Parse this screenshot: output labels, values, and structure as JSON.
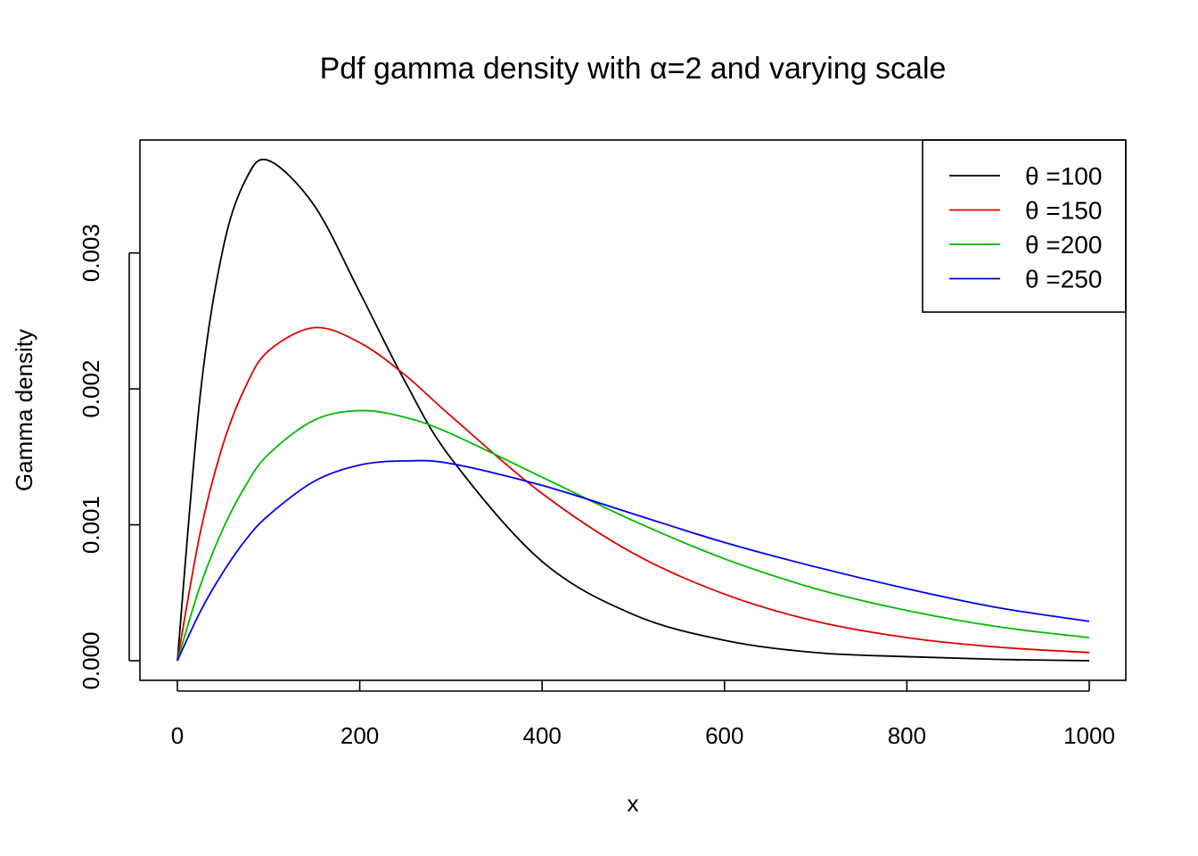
{
  "chart_data": {
    "type": "line",
    "title": "Pdf gamma density with α=2 and varying scale",
    "xlabel": "x",
    "ylabel": "Gamma density",
    "xlim": [
      0,
      1000
    ],
    "ylim": [
      0,
      0.00368
    ],
    "x_ticks": [
      "0",
      "200",
      "400",
      "600",
      "800",
      "1000"
    ],
    "y_ticks": [
      "0.000",
      "0.001",
      "0.002",
      "0.003"
    ],
    "grid": false,
    "legend_position": "top-right",
    "shape_alpha": 2,
    "x": [
      0,
      25,
      50,
      75,
      100,
      150,
      200,
      250,
      300,
      400,
      500,
      600,
      700,
      800,
      900,
      1000
    ],
    "series": [
      {
        "name": "θ =100",
        "color": "#000000",
        "values": [
          0,
          0.00195,
          0.00303,
          0.00354,
          0.00368,
          0.00335,
          0.00271,
          0.00205,
          0.00149,
          0.00073,
          0.00034,
          0.00015,
          6e-05,
          3e-05,
          1e-05,
          0.0
        ]
      },
      {
        "name": "θ =150",
        "color": "#df0000",
        "values": [
          0,
          0.00094,
          0.00159,
          0.00202,
          0.00228,
          0.00245,
          0.00234,
          0.0021,
          0.0018,
          0.00123,
          0.00079,
          0.00049,
          0.00029,
          0.00017,
          0.0001,
          6e-05
        ]
      },
      {
        "name": "θ =200",
        "color": "#00bb00",
        "values": [
          0,
          0.00055,
          0.00097,
          0.00129,
          0.00152,
          0.00177,
          0.00184,
          0.00179,
          0.00167,
          0.00135,
          0.00103,
          0.00075,
          0.00053,
          0.00037,
          0.00025,
          0.00017
        ]
      },
      {
        "name": "θ =250",
        "color": "#0000ee",
        "values": [
          0,
          0.00036,
          0.00065,
          0.00089,
          0.00107,
          0.00132,
          0.00144,
          0.00147,
          0.00145,
          0.00129,
          0.00108,
          0.00087,
          0.00069,
          0.00053,
          0.00039,
          0.00029
        ]
      }
    ]
  }
}
